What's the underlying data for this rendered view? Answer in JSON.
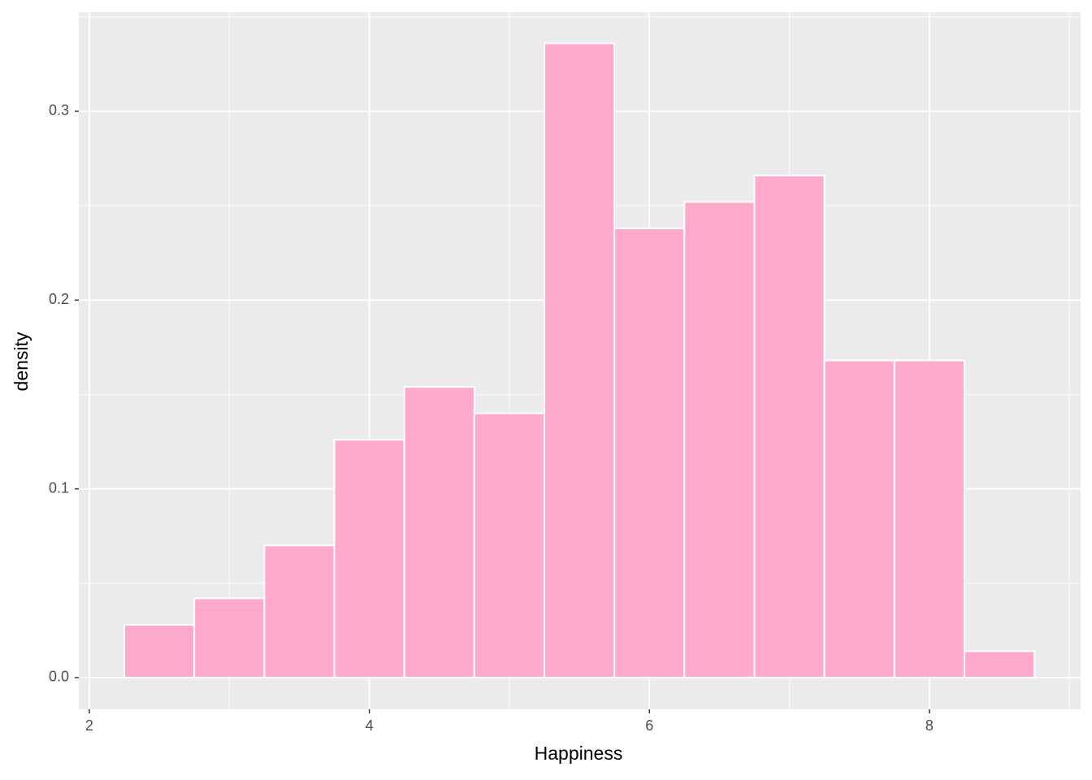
{
  "chart_data": {
    "type": "histogram",
    "x_label": "Happiness",
    "y_label": "density",
    "bins": [
      2.25,
      2.75,
      3.25,
      3.75,
      4.25,
      4.75,
      5.25,
      5.75,
      6.25,
      6.75,
      7.25,
      7.75,
      8.25,
      8.75
    ],
    "values": [
      0.028,
      0.042,
      0.07,
      0.126,
      0.154,
      0.14,
      0.336,
      0.238,
      0.252,
      0.266,
      0.168,
      0.168,
      0.014
    ],
    "color": "#ffaacd",
    "edge_color": "#ffffff",
    "xlim": [
      1.925,
      9.08
    ],
    "ylim": [
      -0.0168,
      0.3525
    ],
    "xticks": [
      2,
      4,
      6,
      8
    ],
    "yticks": [
      {
        "value": 0,
        "label": "0.0"
      },
      0.1,
      0.2,
      0.3
    ],
    "grid": true
  }
}
